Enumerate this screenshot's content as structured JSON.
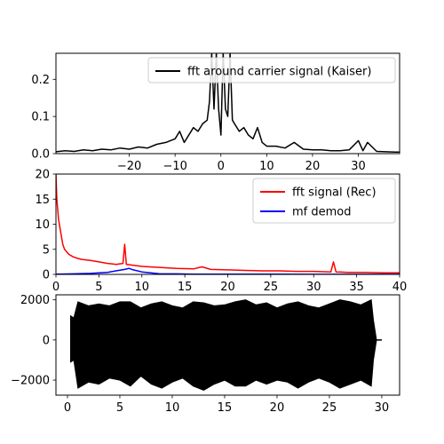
{
  "chart_data": [
    {
      "type": "line",
      "xlim": [
        -36,
        39
      ],
      "ylim": [
        0,
        0.27
      ],
      "xticks": [
        -20,
        -10,
        0,
        10,
        20,
        30
      ],
      "xtick_labels": [
        "−20",
        "−10",
        "0",
        "10",
        "20",
        "30"
      ],
      "yticks": [
        0.0,
        0.1,
        0.2
      ],
      "ytick_labels": [
        "0.0",
        "0.1",
        "0.2"
      ],
      "legend_position": "top-right",
      "grid": false,
      "series": [
        {
          "name": "fft around carrier signal (Kaiser)",
          "color": "#000000",
          "x": [
            -36,
            -34,
            -32,
            -30,
            -28,
            -26,
            -24,
            -22,
            -20,
            -18,
            -16,
            -14,
            -12,
            -10,
            -9,
            -8,
            -7,
            -6,
            -5,
            -4,
            -3,
            -2.5,
            -2,
            -1.5,
            -1,
            -0.5,
            0,
            0.5,
            1,
            1.5,
            2,
            2.5,
            3,
            4,
            5,
            6,
            7,
            8,
            9,
            10,
            12,
            14,
            16,
            18,
            20,
            22,
            24,
            26,
            28,
            30,
            31,
            32,
            34,
            36,
            38,
            39
          ],
          "y": [
            0.005,
            0.008,
            0.006,
            0.01,
            0.008,
            0.012,
            0.01,
            0.015,
            0.012,
            0.018,
            0.015,
            0.025,
            0.03,
            0.04,
            0.06,
            0.03,
            0.05,
            0.07,
            0.06,
            0.08,
            0.09,
            0.14,
            0.27,
            0.12,
            0.27,
            0.12,
            0.05,
            0.27,
            0.12,
            0.1,
            0.27,
            0.09,
            0.08,
            0.06,
            0.07,
            0.05,
            0.04,
            0.07,
            0.03,
            0.02,
            0.02,
            0.015,
            0.03,
            0.012,
            0.01,
            0.01,
            0.008,
            0.008,
            0.01,
            0.035,
            0.008,
            0.03,
            0.006,
            0.005,
            0.004,
            0.004
          ]
        }
      ]
    },
    {
      "type": "line",
      "xlim": [
        0,
        40
      ],
      "ylim": [
        0,
        20
      ],
      "xticks": [
        0,
        5,
        10,
        15,
        20,
        25,
        30,
        35,
        40
      ],
      "xtick_labels": [
        "0",
        "5",
        "10",
        "15",
        "20",
        "25",
        "30",
        "35",
        "40"
      ],
      "yticks": [
        0,
        5,
        10,
        15,
        20
      ],
      "ytick_labels": [
        "0",
        "5",
        "10",
        "15",
        "20"
      ],
      "legend_position": "top-right",
      "grid": false,
      "series": [
        {
          "name": "fft signal (Rec)",
          "color": "#ff0000",
          "x": [
            0,
            0.1,
            0.3,
            0.5,
            0.8,
            1,
            1.5,
            2,
            2.5,
            3,
            4,
            5,
            6,
            7,
            7.8,
            8,
            8.2,
            9,
            10,
            12,
            14,
            16,
            17,
            18,
            20,
            22,
            24,
            26,
            28,
            30,
            32,
            32.3,
            32.6,
            34,
            36,
            38,
            40
          ],
          "y": [
            20,
            15,
            11,
            9,
            6,
            5,
            4,
            3.5,
            3.2,
            3,
            2.8,
            2.5,
            2.2,
            2,
            2.2,
            6,
            2,
            1.8,
            1.6,
            1.4,
            1.2,
            1.1,
            1.5,
            1.0,
            0.9,
            0.8,
            0.7,
            0.7,
            0.6,
            0.6,
            0.5,
            2.5,
            0.5,
            0.4,
            0.4,
            0.3,
            0.3
          ]
        },
        {
          "name": "mf demod",
          "color": "#0000ff",
          "x": [
            0,
            2,
            4,
            6,
            7,
            8,
            8.5,
            9,
            10,
            11,
            12,
            14,
            16,
            20,
            25,
            30,
            35,
            40
          ],
          "y": [
            0.05,
            0.1,
            0.2,
            0.4,
            0.7,
            1.0,
            1.2,
            0.9,
            0.5,
            0.3,
            0.15,
            0.1,
            0.05,
            0.04,
            0.03,
            0.02,
            0.02,
            0.02
          ]
        }
      ]
    },
    {
      "type": "line",
      "xlim": [
        -1.1,
        31.7
      ],
      "ylim": [
        -2750,
        2250
      ],
      "xticks": [
        0,
        5,
        10,
        15,
        20,
        25,
        30
      ],
      "xtick_labels": [
        "0",
        "5",
        "10",
        "15",
        "20",
        "25",
        "30"
      ],
      "yticks": [
        -2000,
        0,
        2000
      ],
      "ytick_labels": [
        "−2000",
        "0",
        "2000"
      ],
      "grid": false,
      "series": [
        {
          "name": "",
          "color": "#000000",
          "x": [
            0.3,
            0.6,
            1,
            2,
            3,
            4,
            5,
            6,
            7,
            8,
            9,
            10,
            11,
            12,
            13,
            14,
            15,
            16,
            17,
            18,
            19,
            20,
            21,
            22,
            23,
            24,
            25,
            26,
            27,
            28,
            29,
            29.2,
            29.5,
            30
          ],
          "y_upper": [
            1200,
            1100,
            1900,
            1700,
            1800,
            1700,
            1900,
            1900,
            1600,
            1800,
            1900,
            1700,
            1600,
            1900,
            1850,
            1700,
            1750,
            1900,
            2000,
            1750,
            1850,
            1600,
            1800,
            1900,
            1700,
            1600,
            1800,
            2000,
            1900,
            1750,
            2000,
            1000,
            0,
            0
          ],
          "y_lower": [
            -1100,
            -1000,
            -2400,
            -2100,
            -2200,
            -1900,
            -2000,
            -2300,
            -1800,
            -2200,
            -2400,
            -2100,
            -1900,
            -2300,
            -2500,
            -2200,
            -2000,
            -2300,
            -2300,
            -2000,
            -2200,
            -2000,
            -2100,
            -2400,
            -2100,
            -1900,
            -2100,
            -2400,
            -2200,
            -2000,
            -2300,
            -1000,
            0,
            0
          ]
        }
      ]
    }
  ]
}
